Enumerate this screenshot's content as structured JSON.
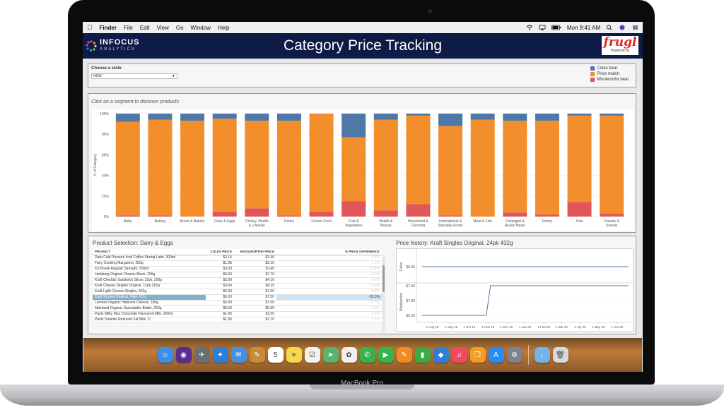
{
  "device": {
    "label": "MacBook Pro"
  },
  "menubar": {
    "app_name": "Finder",
    "items": [
      "File",
      "Edit",
      "View",
      "Go",
      "Window",
      "Help"
    ],
    "clock": "Mon 9:41 AM"
  },
  "header": {
    "brand_main": "INFOCUS",
    "brand_sub": "ANALYTICS",
    "title": "Category Price Tracking",
    "partner_main": "frugl",
    "partner_sub": "Powered by"
  },
  "state_filter": {
    "label": "Choose a state",
    "value": "NSW"
  },
  "legend": {
    "items": [
      {
        "label": "Coles beat",
        "color": "#4e79a7"
      },
      {
        "label": "Price match",
        "color": "#f28e2b"
      },
      {
        "label": "Woolworths beat",
        "color": "#e15759"
      }
    ]
  },
  "chart_hint": "Click on a segment to discover products",
  "chart_data": {
    "type": "bar",
    "stacked": true,
    "ylabel": "% of Category",
    "ylim": [
      0,
      100
    ],
    "yticks": [
      "0%",
      "20%",
      "40%",
      "60%",
      "80%",
      "100%"
    ],
    "categories": [
      "Baby",
      "Baking",
      "Bread & Bakery",
      "Dairy & Eggs",
      "Dietary, Health & Lifestyle",
      "Drinks",
      "Frozen Food",
      "Fruit & Vegetables",
      "Health & Beauty",
      "Household & Cleaning",
      "International & Specialty Foods",
      "Meat & Fish",
      "Packaged & Ready Meals",
      "Pantry",
      "Pets",
      "Snacks & Sweets"
    ],
    "series": [
      {
        "name": "Woolworths beat",
        "color": "#e15759",
        "values": [
          1,
          1,
          0,
          5,
          8,
          1,
          5,
          15,
          6,
          12,
          1,
          0,
          4,
          2,
          14,
          3
        ]
      },
      {
        "name": "Price match",
        "color": "#f28e2b",
        "values": [
          91,
          93,
          93,
          90,
          85,
          92,
          95,
          62,
          88,
          86,
          87,
          94,
          89,
          91,
          84,
          95
        ]
      },
      {
        "name": "Coles beat",
        "color": "#4e79a7",
        "values": [
          8,
          6,
          7,
          5,
          7,
          7,
          0,
          23,
          6,
          2,
          12,
          6,
          7,
          7,
          2,
          2
        ]
      }
    ]
  },
  "product_table": {
    "title": "Product Selection: Dairy & Eggs",
    "columns": [
      "Product",
      "Coles Price",
      "Woolworths Price",
      "% Price Difference"
    ],
    "rows": [
      {
        "product": "Dare Cold Pressed Iced Coffee Strong Latte, 300ml",
        "coles": "$3.15",
        "woolworths": "$3.30",
        "diff": "-4.5%",
        "selected": false
      },
      {
        "product": "Fairy Cooking Margarine, 250g",
        "coles": "$1.95",
        "woolworths": "$2.10",
        "diff": "-7.1%",
        "selected": false
      },
      {
        "product": "Ice Break Regular Strength, 500ml",
        "coles": "$3.00",
        "woolworths": "$3.40",
        "diff": "-11.8%",
        "selected": false
      },
      {
        "product": "Jarlsberg Original Cheese Block, 250g",
        "coles": "$6.50",
        "woolworths": "$7.70",
        "diff": "-15.6%",
        "selected": false
      },
      {
        "product": "Kraft Cheddar Sandwich Slices 12pk, 250g",
        "coles": "$3.90",
        "woolworths": "$4.10",
        "diff": "-4.9%",
        "selected": false
      },
      {
        "product": "Kraft Cheese Singles Original, 12pk 216g",
        "coles": "$3.60",
        "woolworths": "$4.15",
        "diff": "-13.3%",
        "selected": false
      },
      {
        "product": "Kraft Light Cheese Singles, 432g",
        "coles": "$6.90",
        "woolworths": "$7.50",
        "diff": "-8.0%",
        "selected": false
      },
      {
        "product": "Kraft Singles Original, 24pk 432g",
        "coles": "$5.00",
        "woolworths": "$7.50",
        "diff": "-33.3%",
        "selected": true
      },
      {
        "product": "Lemnos Organic Halloumi Cheese, 180g",
        "coles": "$5.90",
        "woolworths": "$7.00",
        "diff": "-15.7%",
        "selected": false
      },
      {
        "product": "Mainland Organic Spreadable Butter, 250g",
        "coles": "$5.50",
        "woolworths": "$5.90",
        "diff": "-6.8%",
        "selected": false
      },
      {
        "product": "Pauls Milky Max Chocolate Flavoured Milk, 250ml",
        "coles": "$1.95",
        "woolworths": "$2.00",
        "diff": "-2.5%",
        "selected": false
      },
      {
        "product": "Pauls Smarter Reduced Fat Milk, 1l",
        "coles": "$1.95",
        "woolworths": "$2.10",
        "diff": "-7.1%",
        "selected": false
      }
    ]
  },
  "price_history": {
    "title": "Price history: Kraft Singles Original, 24pk 432g",
    "x_ticks": [
      "1 Aug 19",
      "1 Sep 19",
      "1 Oct 19",
      "1 Nov 19",
      "1 Dec 19",
      "1 Jan 20",
      "1 Feb 20",
      "1 Mar 20",
      "1 Apr 20",
      "1 May 20",
      "1 Jun 20"
    ],
    "coles": {
      "label": "Coles",
      "y_ticks": [
        "$5.00"
      ],
      "points": [
        [
          "2019-07-15",
          5.0
        ],
        [
          "2020-06-20",
          5.0
        ]
      ]
    },
    "woolworths": {
      "label": "Woolworths",
      "y_ticks": [
        "$7.50",
        "$7.00",
        "$6.50"
      ],
      "points": [
        [
          "2019-07-15",
          6.5
        ],
        [
          "2019-10-29",
          6.5
        ],
        [
          "2019-11-05",
          7.5
        ],
        [
          "2020-06-20",
          7.5
        ]
      ]
    }
  },
  "dock": {
    "apps": [
      {
        "name": "finder-icon",
        "color": "#3d8ee8",
        "glyph": "☺"
      },
      {
        "name": "siri-icon",
        "color": "#5a2d91",
        "glyph": "◉"
      },
      {
        "name": "launchpad-icon",
        "color": "#6b6f75",
        "glyph": "✈"
      },
      {
        "name": "safari-icon",
        "color": "#2b7fd8",
        "glyph": "✦"
      },
      {
        "name": "mail-icon",
        "color": "#4a8ee0",
        "glyph": "✉"
      },
      {
        "name": "notes-app-icon",
        "color": "#c58c3a",
        "glyph": "✎"
      },
      {
        "name": "calendar-icon",
        "color": "#ffffff",
        "glyph": "5"
      },
      {
        "name": "notes-icon",
        "color": "#f6d94a",
        "glyph": "≡"
      },
      {
        "name": "reminders-icon",
        "color": "#f2f2f2",
        "glyph": "☑"
      },
      {
        "name": "maps-icon",
        "color": "#59b36b",
        "glyph": "➤"
      },
      {
        "name": "photos-icon",
        "color": "#f0f0f0",
        "glyph": "✿"
      },
      {
        "name": "messages-icon",
        "color": "#38b24c",
        "glyph": "✆"
      },
      {
        "name": "facetime-icon",
        "color": "#37b449",
        "glyph": "▶"
      },
      {
        "name": "pages-icon",
        "color": "#f08a24",
        "glyph": "✎"
      },
      {
        "name": "numbers-icon",
        "color": "#3cab45",
        "glyph": "▮"
      },
      {
        "name": "keynote-icon",
        "color": "#2f7ed8",
        "glyph": "◆"
      },
      {
        "name": "music-icon",
        "color": "#f04a5f",
        "glyph": "♫"
      },
      {
        "name": "books-icon",
        "color": "#f39c29",
        "glyph": "❐"
      },
      {
        "name": "app-store-icon",
        "color": "#2a8bf2",
        "glyph": "A"
      },
      {
        "name": "system-preferences-icon",
        "color": "#7f8389",
        "glyph": "⚙"
      },
      {
        "name": "downloads-folder-icon",
        "color": "#73b3e8",
        "glyph": "↓"
      },
      {
        "name": "trash-icon",
        "color": "#d7d9dc",
        "glyph": "🗑"
      }
    ]
  }
}
